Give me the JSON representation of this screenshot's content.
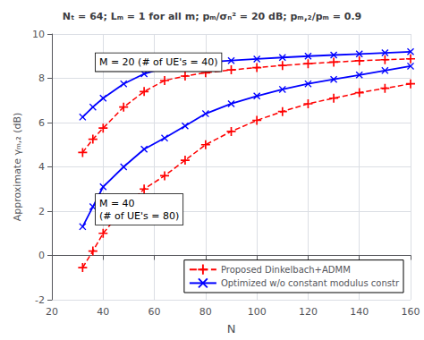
{
  "chart_data": {
    "type": "line",
    "title": "Nₜ = 64; Lₘ = 1 for all m; pₘ/σₙ² = 20 dB; pₘ,₂/pₘ = 0.9",
    "x_label": "N",
    "y_label": "Approximate γₘ,₂ (dB)",
    "x": [
      32,
      36,
      40,
      48,
      56,
      64,
      72,
      80,
      90,
      100,
      110,
      120,
      130,
      140,
      150,
      160
    ],
    "series": [
      {
        "name": "Proposed Dinkelbach+ADMM",
        "color": "#FF0000",
        "line_style": "dashed",
        "marker": "plus",
        "values": [
          4.65,
          5.25,
          5.75,
          6.7,
          7.4,
          7.9,
          8.1,
          8.25,
          8.38,
          8.48,
          8.58,
          8.66,
          8.73,
          8.79,
          8.84,
          8.88
        ]
      },
      {
        "name": "Optimized w/o constant modulus constr",
        "color": "#0000FF",
        "line_style": "solid",
        "marker": "x",
        "values": [
          6.25,
          6.7,
          7.1,
          7.75,
          8.2,
          8.48,
          8.62,
          8.72,
          8.8,
          8.87,
          8.94,
          9.0,
          9.05,
          9.1,
          9.15,
          9.2
        ]
      },
      {
        "color": "#FF0000",
        "line_style": "dashed",
        "marker": "plus",
        "values": [
          -0.55,
          0.2,
          1.0,
          2.1,
          3.0,
          3.6,
          4.3,
          5.0,
          5.6,
          6.1,
          6.5,
          6.85,
          7.1,
          7.35,
          7.55,
          7.75
        ]
      },
      {
        "color": "#0000FF",
        "line_style": "solid",
        "marker": "x",
        "values": [
          1.3,
          2.2,
          3.1,
          4.0,
          4.8,
          5.3,
          5.85,
          6.4,
          6.85,
          7.2,
          7.5,
          7.75,
          7.95,
          8.15,
          8.35,
          8.55
        ]
      }
    ],
    "xlim": [
      20,
      160
    ],
    "ylim": [
      -2,
      10
    ],
    "xticks": [
      20,
      40,
      60,
      80,
      100,
      120,
      140,
      160
    ],
    "yticks": [
      -2,
      0,
      2,
      4,
      6,
      8,
      10
    ],
    "grid": true,
    "legend": "lower right",
    "annotations": [
      "M = 20 (# of UE's = 40)",
      "M = 40\n(# of UE's = 80)"
    ]
  }
}
